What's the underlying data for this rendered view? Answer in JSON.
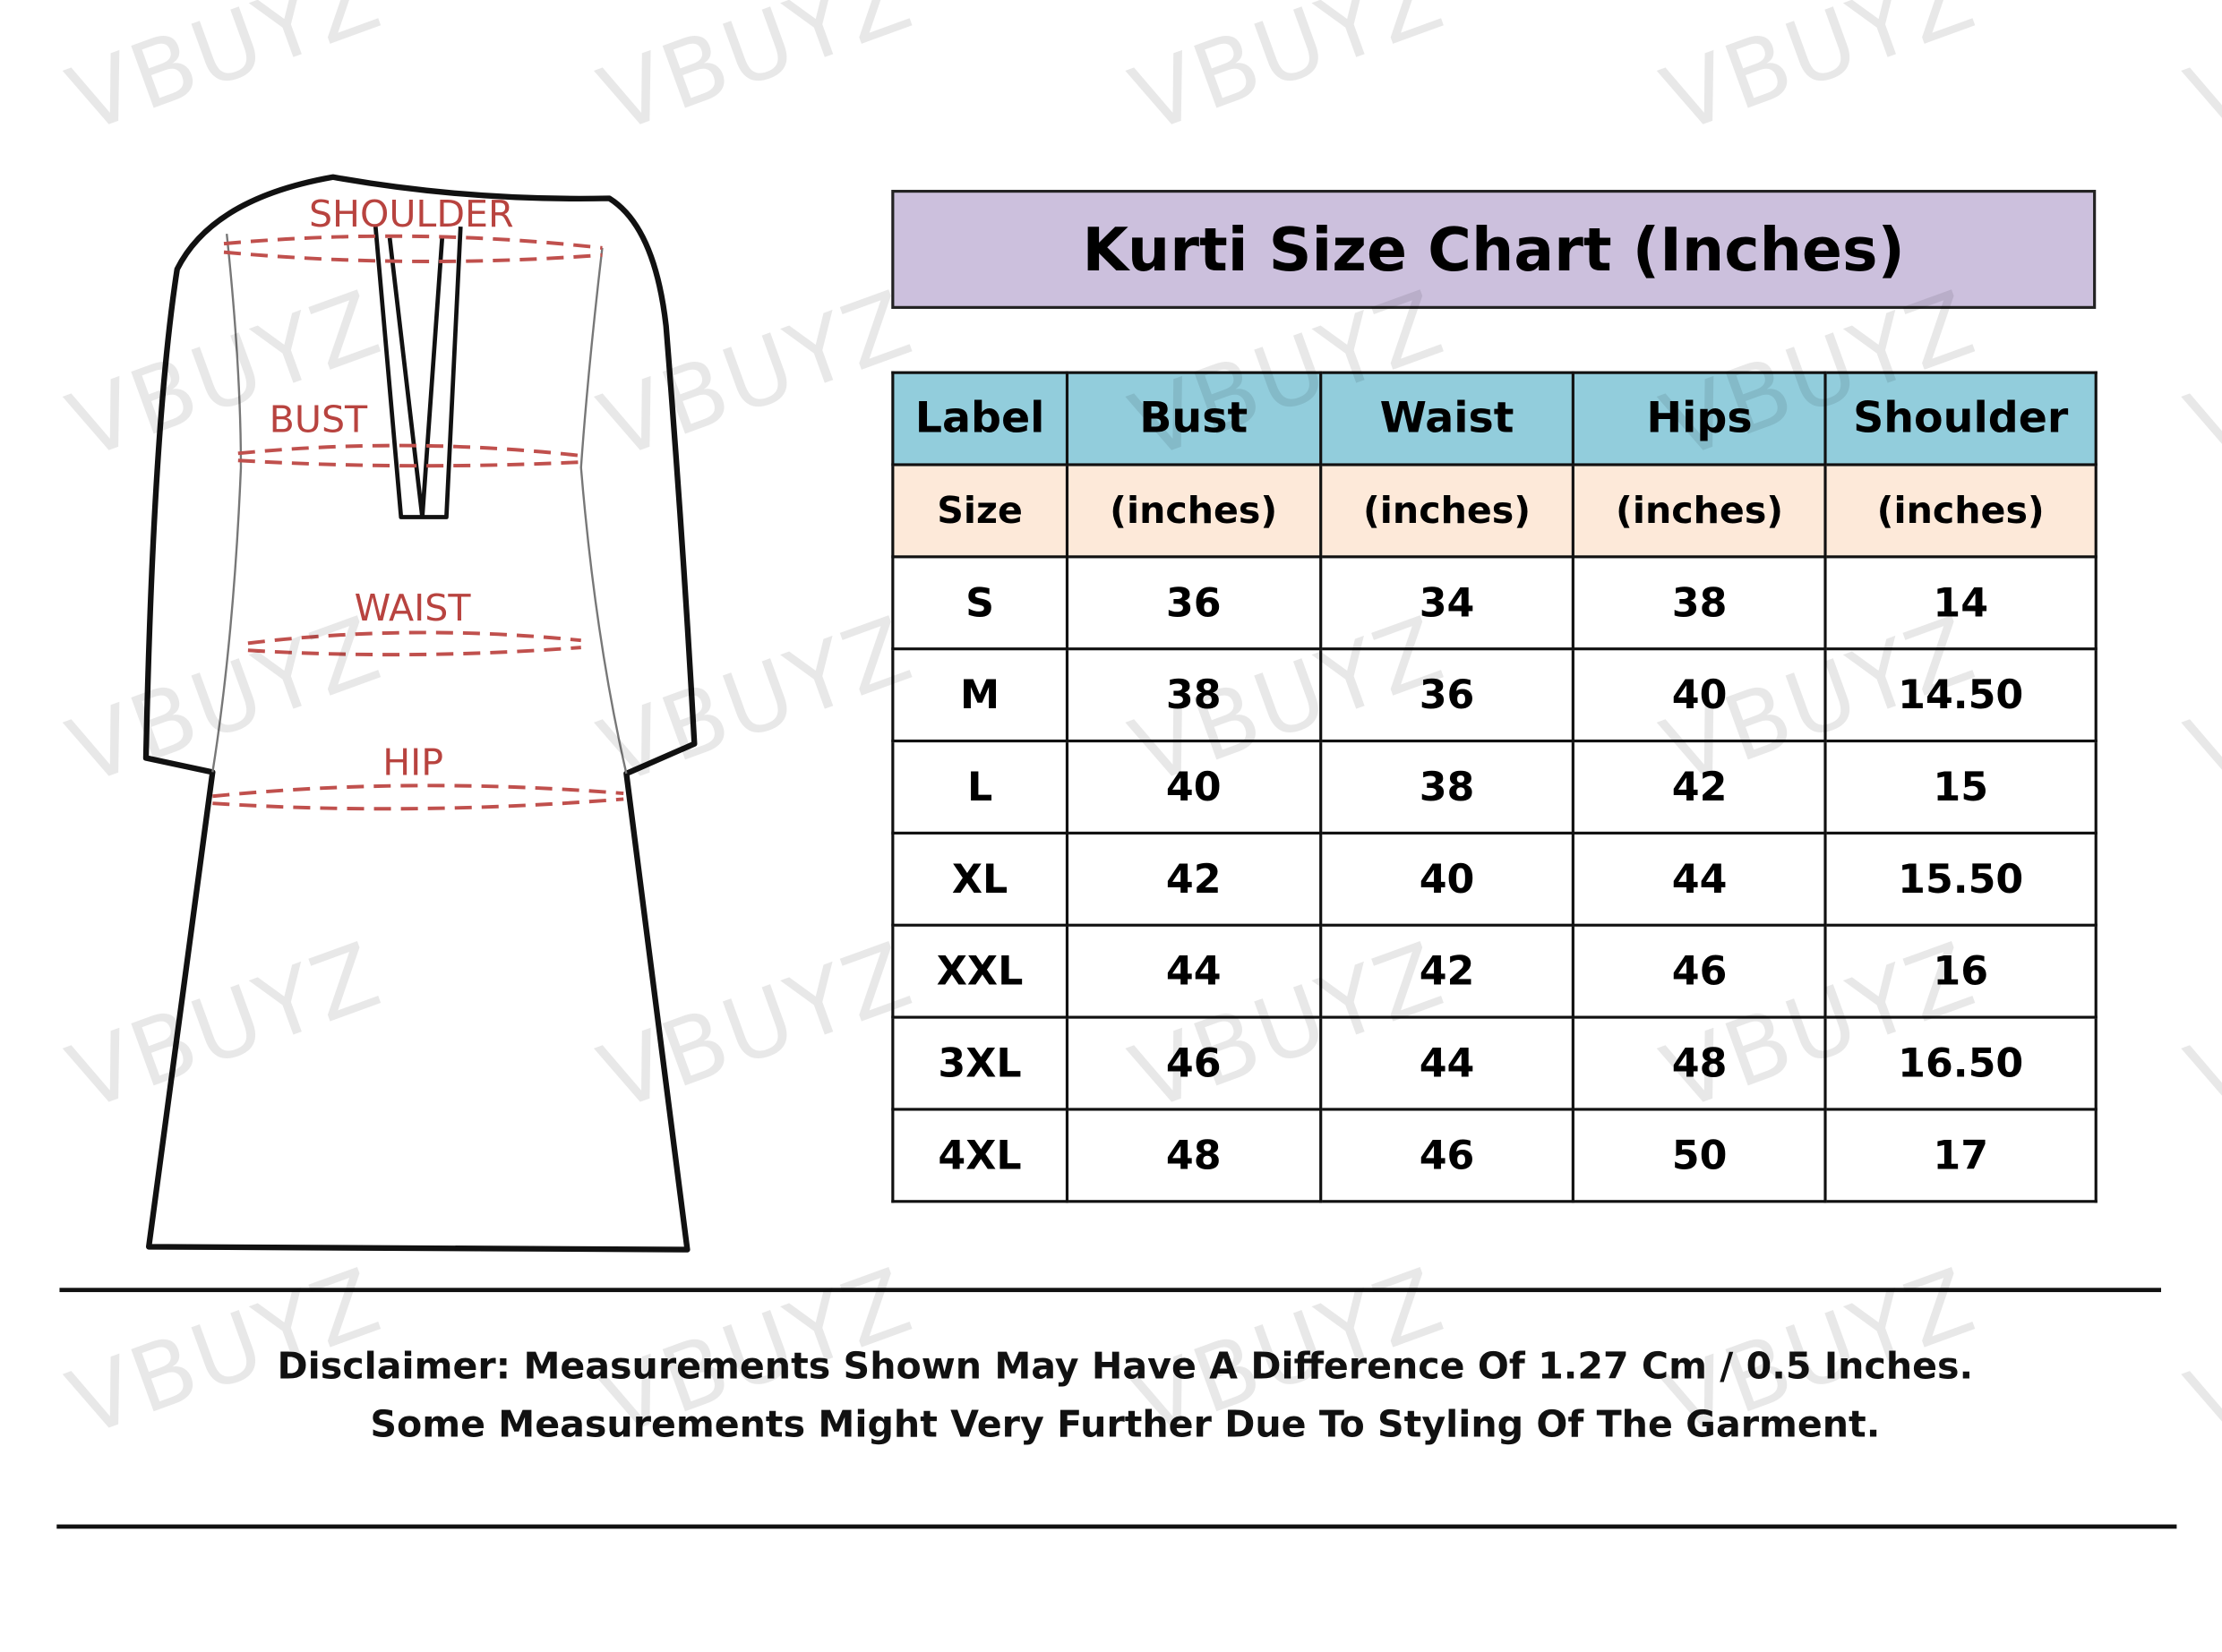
{
  "watermark": "VBUYZ",
  "diagram": {
    "labels": {
      "shoulder": "SHOULDER",
      "bust": "BUST",
      "waist": "WAIST",
      "hip": "HIP"
    }
  },
  "chart": {
    "title": "Kurti Size Chart (Inches)",
    "header": [
      "Label",
      "Bust",
      "Waist",
      "Hips",
      "Shoulder"
    ],
    "subheader": [
      "Size",
      "(inches)",
      "(inches)",
      "(inches)",
      "(inches)"
    ],
    "rows": [
      [
        "S",
        "36",
        "34",
        "38",
        "14"
      ],
      [
        "M",
        "38",
        "36",
        "40",
        "14.50"
      ],
      [
        "L",
        "40",
        "38",
        "42",
        "15"
      ],
      [
        "XL",
        "42",
        "40",
        "44",
        "15.50"
      ],
      [
        "XXL",
        "44",
        "42",
        "46",
        "16"
      ],
      [
        "3XL",
        "46",
        "44",
        "48",
        "16.50"
      ],
      [
        "4XL",
        "48",
        "46",
        "50",
        "17"
      ]
    ]
  },
  "disclaimer": {
    "line1": "Disclaimer: Measurements Shown May Have A Difference Of 1.27 Cm / 0.5 Inches.",
    "line2": "Some Measurements Might Very Further Due To Styling Of The Garment."
  },
  "colors": {
    "title_bg": "#ccc0dd",
    "header_bg": "#92cddc",
    "subheader_bg": "#fde9d9",
    "measure_line": "#c0504d"
  }
}
